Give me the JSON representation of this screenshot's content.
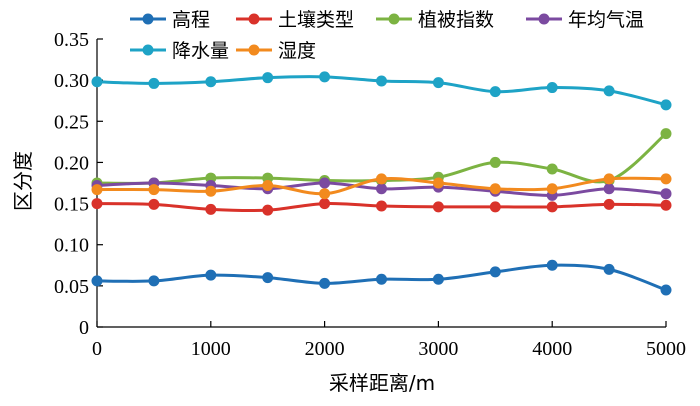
{
  "chart_data": {
    "type": "line",
    "xlabel": "采样距离/m",
    "ylabel": "区分度",
    "x": [
      0,
      500,
      1000,
      1500,
      2000,
      2500,
      3000,
      3500,
      4000,
      4500,
      5000
    ],
    "xlim": [
      0,
      5000
    ],
    "ylim": [
      0,
      0.35
    ],
    "xticks": [
      "0",
      "1000",
      "2000",
      "3000",
      "4000",
      "5000"
    ],
    "yticks": [
      "0",
      "0.05",
      "0.10",
      "0.15",
      "0.20",
      "0.25",
      "0.30",
      "0.35"
    ],
    "grid": false,
    "legend_position": "top",
    "series": [
      {
        "name": "高程",
        "color": "#1f6fb5",
        "values": [
          0.056,
          0.056,
          0.063,
          0.06,
          0.053,
          0.058,
          0.058,
          0.067,
          0.075,
          0.07,
          0.045
        ]
      },
      {
        "name": "土壤类型",
        "color": "#d9322a",
        "values": [
          0.15,
          0.149,
          0.143,
          0.142,
          0.15,
          0.147,
          0.146,
          0.146,
          0.146,
          0.149,
          0.148
        ]
      },
      {
        "name": "植被指数",
        "color": "#7cb342",
        "values": [
          0.175,
          0.175,
          0.181,
          0.181,
          0.178,
          0.178,
          0.182,
          0.2,
          0.192,
          0.178,
          0.235
        ]
      },
      {
        "name": "年均气温",
        "color": "#7b4aa0",
        "values": [
          0.172,
          0.175,
          0.172,
          0.168,
          0.175,
          0.168,
          0.17,
          0.165,
          0.16,
          0.168,
          0.162
        ]
      },
      {
        "name": "降水量",
        "color": "#1ea3c6",
        "values": [
          0.298,
          0.296,
          0.298,
          0.303,
          0.304,
          0.299,
          0.297,
          0.286,
          0.291,
          0.287,
          0.27
        ]
      },
      {
        "name": "湿度",
        "color": "#f28a1e",
        "values": [
          0.167,
          0.167,
          0.165,
          0.172,
          0.162,
          0.18,
          0.175,
          0.168,
          0.168,
          0.18,
          0.18
        ]
      }
    ]
  }
}
